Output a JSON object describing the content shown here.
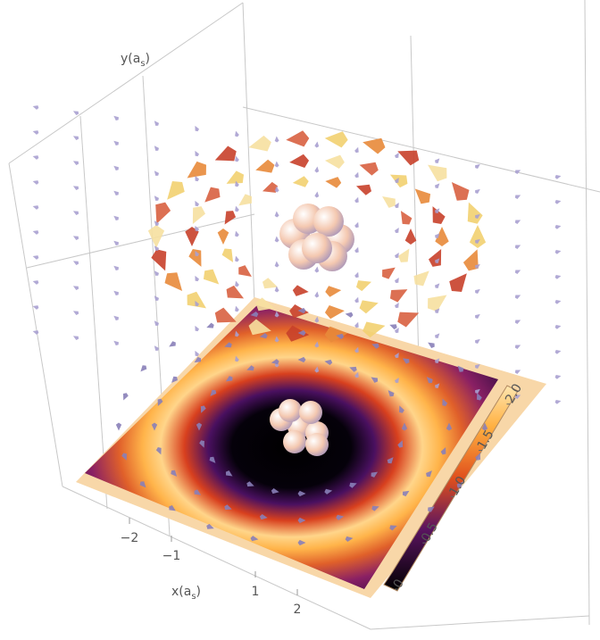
{
  "chart_data": {
    "type": "vector-field-3d",
    "xlabel": [
      "x(a",
      "s",
      ")"
    ],
    "ylabel": [
      "y(a",
      "s",
      ")"
    ],
    "xlim": [
      -3,
      3
    ],
    "xticks": [
      {
        "value": -2,
        "label": "−2"
      },
      {
        "value": -1,
        "label": "−1"
      },
      1,
      2
    ],
    "clim": [
      0,
      2.2
    ],
    "cticks": [
      0,
      0.5,
      {
        "value": 1,
        "label": "1.0"
      },
      1.5,
      {
        "value": 2,
        "label": "2.0"
      }
    ]
  }
}
